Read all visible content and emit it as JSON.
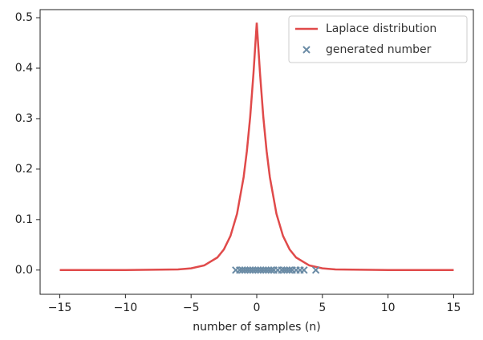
{
  "chart_data": {
    "type": "line",
    "xlabel": "number of samples (n)",
    "xlim": [
      -16.5,
      16.5
    ],
    "ylim": [
      -0.048,
      0.516
    ],
    "xticks": [
      {
        "value": -15,
        "label": "−15"
      },
      {
        "value": -10,
        "label": "−10"
      },
      {
        "value": -5,
        "label": "−5"
      },
      0,
      5,
      10,
      15
    ],
    "yticks": [
      {
        "value": 0,
        "label": "0.0"
      },
      0.1,
      0.2,
      0.3,
      0.4,
      0.5
    ],
    "legend": "upper right",
    "series": [
      {
        "name": "Laplace distribution",
        "type": "line",
        "color": "#e04a4a",
        "x": [
          -15,
          -10,
          -6,
          -5,
          -4,
          -3,
          -2.5,
          -2,
          -1.5,
          -1,
          -0.75,
          -0.5,
          -0.25,
          0,
          0.25,
          0.5,
          0.75,
          1,
          1.5,
          2,
          2.5,
          3,
          4,
          5,
          6,
          10,
          15
        ],
        "values": [
          0,
          0,
          0.0012,
          0.0034,
          0.0092,
          0.0249,
          0.041,
          0.0677,
          0.1116,
          0.1839,
          0.2362,
          0.3033,
          0.3894,
          0.49,
          0.3894,
          0.3033,
          0.2362,
          0.1839,
          0.1116,
          0.0677,
          0.041,
          0.0249,
          0.0092,
          0.0034,
          0.0012,
          0,
          0
        ]
      },
      {
        "name": "generated number",
        "type": "scatter",
        "color": "#6a8ba5",
        "x": [
          -1.6,
          -1.3,
          -1.1,
          -0.9,
          -0.7,
          -0.5,
          -0.3,
          -0.1,
          0.1,
          0.3,
          0.5,
          0.7,
          0.9,
          1.1,
          1.3,
          1.6,
          1.9,
          2.1,
          2.3,
          2.5,
          2.7,
          3.0,
          3.3,
          3.6,
          4.5
        ],
        "values": [
          0,
          0,
          0,
          0,
          0,
          0,
          0,
          0,
          0,
          0,
          0,
          0,
          0,
          0,
          0,
          0,
          0,
          0,
          0,
          0,
          0,
          0,
          0,
          0,
          0
        ]
      }
    ]
  }
}
